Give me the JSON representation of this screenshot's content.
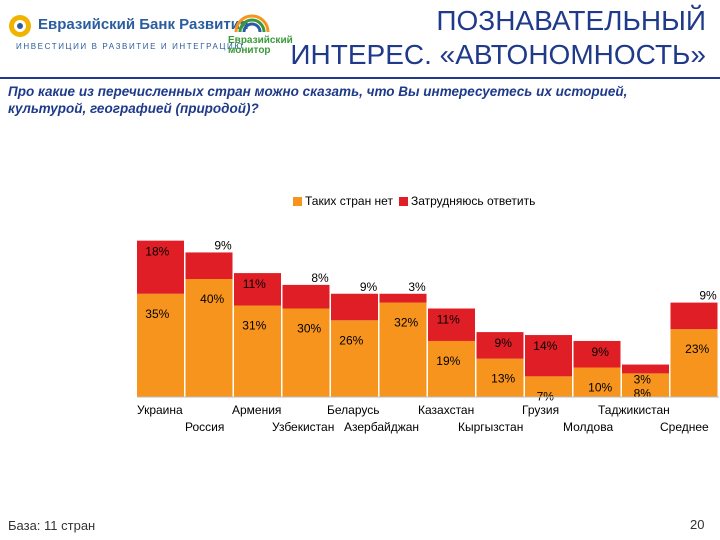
{
  "header": {
    "bank_name": "Евразийский Банк Развития",
    "bank_tagline": "ИНВЕСТИЦИИ В РАЗВИТИЕ И ИНТЕГРАЦИЮ",
    "monitor_line1": "Евразийский",
    "monitor_line2": "монитор",
    "title_line1": "ПОЗНАВАТЕЛЬНЫЙ",
    "title_line2": "ИНТЕРЕС. «АВТОНОМНОСТЬ»"
  },
  "question": "Про какие из перечисленных стран можно сказать, что Вы интересуетесь их историей, культурой, географией (природой)?",
  "footer": {
    "base": "База: 11 стран",
    "page": "20"
  },
  "colors": {
    "orange": "#f7941d",
    "red": "#e01e25",
    "accent": "#1f3a8a"
  },
  "chart_data": {
    "type": "bar",
    "stacked": true,
    "categories": [
      "Украина",
      "Россия",
      "Армения",
      "Узбекистан",
      "Беларусь",
      "Азербайджан",
      "Казахстан",
      "Кыргызстан",
      "Грузия",
      "Молдова",
      "Таджикистан",
      "Среднее"
    ],
    "series": [
      {
        "name": "Таких стран нет",
        "color": "#f7941d",
        "values": [
          35,
          40,
          31,
          30,
          26,
          32,
          19,
          13,
          7,
          10,
          8,
          23
        ]
      },
      {
        "name": "Затрудняюсь ответить",
        "color": "#e01e25",
        "values": [
          18,
          9,
          11,
          8,
          9,
          3,
          11,
          9,
          14,
          9,
          3,
          9
        ]
      }
    ],
    "labels": [
      [
        "35%",
        "18%"
      ],
      [
        "40%",
        "9%"
      ],
      [
        "31%",
        "11%"
      ],
      [
        "30%",
        "8%"
      ],
      [
        "26%",
        "9%"
      ],
      [
        "32%",
        "3%"
      ],
      [
        "19%",
        "11%"
      ],
      [
        "13%",
        "9%"
      ],
      [
        "7%",
        "14%"
      ],
      [
        "10%",
        "9%"
      ],
      [
        "8%",
        "3%"
      ],
      [
        "23%",
        "9%"
      ]
    ],
    "legend": "top",
    "grid": false
  }
}
